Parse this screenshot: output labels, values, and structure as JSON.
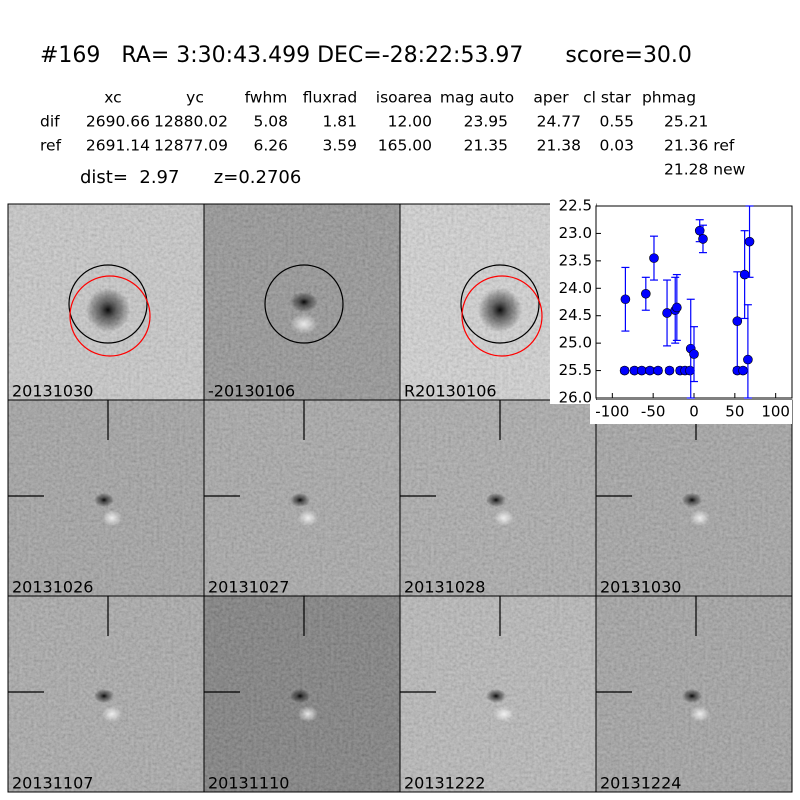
{
  "header": {
    "title": "#169   RA= 3:30:43.499 DEC=-28:22:53.97      score=30.0"
  },
  "table": {
    "columns": [
      "xc",
      "yc",
      "fwhm",
      "fluxrad",
      "isoarea",
      "mag auto",
      "aper",
      "cl star",
      "phmag"
    ],
    "rows": [
      [
        "dif",
        "2690.66",
        "12880.02",
        "5.08",
        "1.81",
        "12.00",
        "23.95",
        "24.77",
        "0.55",
        "25.21"
      ],
      [
        "ref",
        "2691.14",
        "12877.09",
        "6.26",
        "3.59",
        "165.00",
        "21.35",
        "21.38",
        "0.03",
        "21.36 ref"
      ]
    ],
    "extra": "21.28 new"
  },
  "info": "dist=  2.97      z=0.2706",
  "panels": [
    {
      "label": "20131030",
      "color": "#000000"
    },
    {
      "label": "-20130106",
      "color": "#000000"
    },
    {
      "label": "R20130106",
      "color": "#000000"
    },
    {
      "label": "20131026",
      "color": "#000000"
    },
    {
      "label": "20131027",
      "color": "#000000"
    },
    {
      "label": "20131028",
      "color": "#000000"
    },
    {
      "label": "20131030",
      "color": "#ff0000"
    },
    {
      "label": "20131107",
      "color": "#000000"
    },
    {
      "label": "20131110",
      "color": "#000000"
    },
    {
      "label": "20131222",
      "color": "#000000"
    },
    {
      "label": "20131224",
      "color": "#000000"
    }
  ],
  "chart_data": {
    "type": "scatter",
    "xlim": [
      -120,
      120
    ],
    "ylim": [
      26.0,
      22.5
    ],
    "xticks": [
      -100,
      -50,
      0,
      50,
      100
    ],
    "yticks": [
      22.5,
      {
        "value": 23.0,
        "label": "23.0"
      },
      23.5,
      {
        "value": 24.0,
        "label": "24.0"
      },
      24.5,
      {
        "value": 25.0,
        "label": "25.0"
      },
      25.5,
      {
        "value": 26.0,
        "label": "26.0"
      }
    ],
    "series": [
      {
        "color": "#0000ff",
        "x": [
          -84,
          -85,
          -73,
          -64,
          -54,
          -44,
          -59,
          -49,
          -33,
          -23,
          -21,
          -30,
          -17,
          -11,
          -5,
          -4,
          0,
          7,
          11,
          53,
          53,
          60,
          62,
          66,
          68
        ],
        "values": [
          24.2,
          25.5,
          25.5,
          25.5,
          25.5,
          25.5,
          24.1,
          23.45,
          24.45,
          24.4,
          24.35,
          25.5,
          25.5,
          25.5,
          25.5,
          25.1,
          25.2,
          22.95,
          23.1,
          24.6,
          25.5,
          25.5,
          23.75,
          25.3,
          23.15
        ],
        "errors": [
          0.58,
          0.05,
          0.05,
          0.05,
          0.05,
          0.05,
          0.3,
          0.4,
          0.6,
          0.6,
          0.6,
          0.05,
          0.05,
          0.05,
          0.05,
          0.9,
          0.5,
          0.2,
          0.25,
          0.9,
          0.05,
          0.05,
          0.8,
          1.0,
          0.65
        ]
      }
    ]
  }
}
